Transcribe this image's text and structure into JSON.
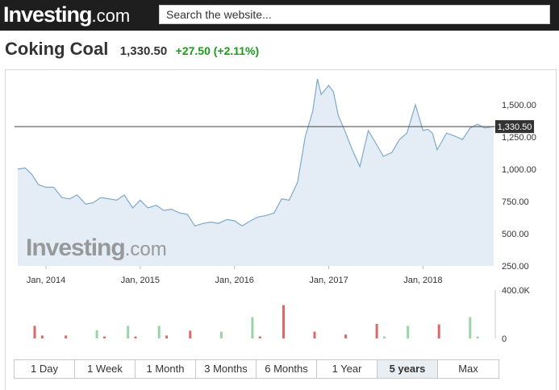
{
  "header": {
    "logo_main": "Investing",
    "logo_suffix": ".com",
    "search_placeholder": "Search the website..."
  },
  "quote": {
    "name": "Coking Coal",
    "price": "1,330.50",
    "change": "+27.50 (+2.11%)",
    "change_color": "#1c9a1c"
  },
  "watermark": {
    "main": "Investing",
    "suffix": ".com"
  },
  "range_buttons": [
    {
      "label": "1 Day",
      "active": false
    },
    {
      "label": "1 Week",
      "active": false
    },
    {
      "label": "1 Month",
      "active": false
    },
    {
      "label": "3 Months",
      "active": false
    },
    {
      "label": "6 Months",
      "active": false
    },
    {
      "label": "1 Year",
      "active": false
    },
    {
      "label": "5 years",
      "active": true
    },
    {
      "label": "Max",
      "active": false
    }
  ],
  "chart_data": {
    "type": "area",
    "y_ticks": [
      "1,500.00",
      "1,250.00",
      "1,000.00",
      "750.00",
      "500.00",
      "250.00"
    ],
    "ylim": [
      250,
      1750
    ],
    "x_ticks": [
      "Jan, 2014",
      "Jan, 2015",
      "Jan, 2016",
      "Jan, 2017",
      "Jan, 2018"
    ],
    "x_range": [
      2013.7,
      2018.75
    ],
    "current_value_label": "1,330.50",
    "current_value": 1330.5,
    "grid": false,
    "line_color": "#7fa9cc",
    "fill_color": "#e4edf5",
    "series": [
      {
        "x": [
          2013.7,
          2013.78,
          2013.85,
          2013.92,
          2014.0,
          2014.08,
          2014.17,
          2014.25,
          2014.33,
          2014.42,
          2014.5,
          2014.58,
          2014.67,
          2014.75,
          2014.83,
          2014.92,
          2015.0,
          2015.08,
          2015.17,
          2015.25,
          2015.33,
          2015.42,
          2015.5,
          2015.58,
          2015.67,
          2015.75,
          2015.83,
          2015.92,
          2016.0,
          2016.08,
          2016.17,
          2016.25,
          2016.33,
          2016.42,
          2016.5,
          2016.58,
          2016.67,
          2016.75,
          2016.83,
          2016.88,
          2016.92,
          2017.0,
          2017.05,
          2017.1,
          2017.17,
          2017.25,
          2017.33,
          2017.42,
          2017.5,
          2017.58,
          2017.67,
          2017.75,
          2017.83,
          2017.92,
          2018.0,
          2018.05,
          2018.1,
          2018.15,
          2018.25,
          2018.33,
          2018.42,
          2018.5,
          2018.58,
          2018.65,
          2018.75
        ],
        "y": [
          1000,
          1010,
          960,
          880,
          860,
          860,
          780,
          770,
          800,
          730,
          740,
          780,
          770,
          760,
          800,
          700,
          760,
          700,
          720,
          680,
          690,
          660,
          650,
          560,
          580,
          590,
          580,
          610,
          600,
          560,
          600,
          630,
          640,
          660,
          770,
          760,
          900,
          1250,
          1450,
          1700,
          1580,
          1650,
          1600,
          1420,
          1300,
          1150,
          1020,
          1300,
          1200,
          1100,
          1130,
          1230,
          1280,
          1500,
          1300,
          1310,
          1280,
          1150,
          1280,
          1260,
          1230,
          1320,
          1350,
          1320,
          1330
        ]
      }
    ],
    "volume": {
      "y_ticks": [
        "400.0K",
        "0"
      ],
      "bars": [
        {
          "x": 2013.88,
          "value": 0.26,
          "direction": "down"
        },
        {
          "x": 2013.96,
          "value": 0.06,
          "direction": "down"
        },
        {
          "x": 2014.21,
          "value": 0.06,
          "direction": "down"
        },
        {
          "x": 2014.54,
          "value": 0.17,
          "direction": "up"
        },
        {
          "x": 2014.62,
          "value": 0.04,
          "direction": "down"
        },
        {
          "x": 2014.87,
          "value": 0.26,
          "direction": "up"
        },
        {
          "x": 2014.95,
          "value": 0.04,
          "direction": "down"
        },
        {
          "x": 2015.2,
          "value": 0.26,
          "direction": "up"
        },
        {
          "x": 2015.28,
          "value": 0.06,
          "direction": "down"
        },
        {
          "x": 2015.53,
          "value": 0.16,
          "direction": "down"
        },
        {
          "x": 2015.86,
          "value": 0.14,
          "direction": "up"
        },
        {
          "x": 2016.19,
          "value": 0.44,
          "direction": "up"
        },
        {
          "x": 2016.27,
          "value": 0.04,
          "direction": "down"
        },
        {
          "x": 2016.52,
          "value": 0.69,
          "direction": "down"
        },
        {
          "x": 2016.85,
          "value": 0.14,
          "direction": "down"
        },
        {
          "x": 2017.18,
          "value": 0.08,
          "direction": "down"
        },
        {
          "x": 2017.51,
          "value": 0.3,
          "direction": "down"
        },
        {
          "x": 2017.59,
          "value": 0.04,
          "direction": "up"
        },
        {
          "x": 2017.84,
          "value": 0.26,
          "direction": "up"
        },
        {
          "x": 2018.17,
          "value": 0.29,
          "direction": "down"
        },
        {
          "x": 2018.5,
          "value": 0.44,
          "direction": "up"
        },
        {
          "x": 2018.58,
          "value": 0.04,
          "direction": "up"
        }
      ],
      "up_color": "#9bd3a7",
      "down_color": "#d96a6a"
    }
  }
}
